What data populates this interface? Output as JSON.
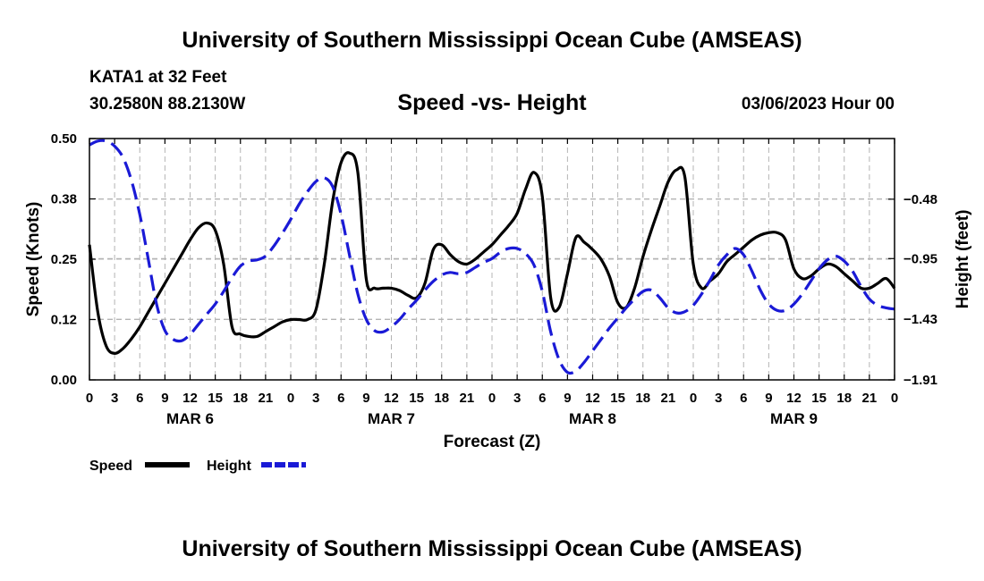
{
  "header": {
    "title": "University of Southern Mississippi Ocean Cube (AMSEAS)",
    "station": "KATA1 at 32 Feet",
    "coords": "30.2580N  88.2130W",
    "subtitle": "Speed -vs- Height",
    "datetime": "03/06/2023 Hour 00"
  },
  "footer": {
    "title": "University of Southern Mississippi Ocean Cube (AMSEAS)"
  },
  "chart_data": {
    "type": "line",
    "xlabel": "Forecast (Z)",
    "ylabel": "Speed (Knots)",
    "y2label": "Height (feet)",
    "x_range": [
      0,
      96
    ],
    "ylim": [
      0.0,
      0.5
    ],
    "y2lim": [
      -1.91,
      0.0
    ],
    "grid": true,
    "legend_position": "bottom-left",
    "x_ticks": [
      0,
      3,
      6,
      9,
      12,
      15,
      18,
      21,
      24,
      27,
      30,
      33,
      36,
      39,
      42,
      45,
      48,
      51,
      54,
      57,
      60,
      63,
      66,
      69,
      72,
      75,
      78,
      81,
      84,
      87,
      90,
      93,
      96
    ],
    "x_tick_labels": [
      "0",
      "3",
      "6",
      "9",
      "12",
      "15",
      "18",
      "21",
      "0",
      "3",
      "6",
      "9",
      "12",
      "15",
      "18",
      "21",
      "0",
      "3",
      "6",
      "9",
      "12",
      "15",
      "18",
      "21",
      "0",
      "3",
      "6",
      "9",
      "12",
      "15",
      "18",
      "21",
      "0"
    ],
    "day_labels": [
      {
        "x": 12,
        "label": "MAR 6"
      },
      {
        "x": 36,
        "label": "MAR 7"
      },
      {
        "x": 60,
        "label": "MAR 8"
      },
      {
        "x": 84,
        "label": "MAR 9"
      }
    ],
    "y_ticks": [
      0.0,
      0.125,
      0.25,
      0.375,
      0.5
    ],
    "y_tick_labels": [
      "0.00",
      "0.12",
      "0.25",
      "0.38",
      "0.50"
    ],
    "y2_ticks": [
      -1.91,
      -1.43,
      -0.95,
      -0.48
    ],
    "y2_tick_labels": [
      "-1.91",
      "-1.43",
      "-0.95",
      "-0.48"
    ],
    "series": [
      {
        "name": "Speed",
        "axis": "left",
        "color": "#000000",
        "dash": "solid",
        "x": [
          0,
          1,
          2,
          3,
          4,
          5,
          6,
          7,
          8,
          9,
          10,
          11,
          12,
          13,
          14,
          15,
          16,
          17,
          18,
          19,
          20,
          21,
          22,
          23,
          24,
          25,
          26,
          27,
          28,
          29,
          30,
          31,
          32,
          33,
          34,
          35,
          36,
          37,
          38,
          39,
          40,
          41,
          42,
          43,
          44,
          45,
          46,
          47,
          48,
          49,
          50,
          51,
          52,
          53,
          54,
          55,
          56,
          57,
          58,
          59,
          60,
          61,
          62,
          63,
          64,
          65,
          66,
          67,
          68,
          69,
          70,
          71,
          72,
          73,
          74,
          75,
          76,
          77,
          78,
          79,
          80,
          81,
          82,
          83,
          84,
          85,
          86,
          87,
          88,
          89,
          90,
          91,
          92,
          93,
          94,
          95,
          96
        ],
        "values": [
          0.28,
          0.14,
          0.07,
          0.055,
          0.065,
          0.085,
          0.11,
          0.14,
          0.17,
          0.2,
          0.23,
          0.26,
          0.29,
          0.315,
          0.325,
          0.31,
          0.24,
          0.11,
          0.095,
          0.09,
          0.09,
          0.1,
          0.11,
          0.12,
          0.125,
          0.125,
          0.125,
          0.145,
          0.24,
          0.37,
          0.45,
          0.47,
          0.43,
          0.21,
          0.19,
          0.19,
          0.19,
          0.185,
          0.175,
          0.17,
          0.2,
          0.27,
          0.28,
          0.26,
          0.245,
          0.24,
          0.25,
          0.265,
          0.28,
          0.3,
          0.32,
          0.345,
          0.395,
          0.43,
          0.38,
          0.17,
          0.15,
          0.22,
          0.295,
          0.285,
          0.27,
          0.25,
          0.215,
          0.16,
          0.15,
          0.19,
          0.255,
          0.31,
          0.36,
          0.41,
          0.435,
          0.42,
          0.24,
          0.19,
          0.205,
          0.22,
          0.245,
          0.26,
          0.275,
          0.29,
          0.3,
          0.305,
          0.305,
          0.29,
          0.23,
          0.21,
          0.215,
          0.23,
          0.24,
          0.235,
          0.22,
          0.205,
          0.19,
          0.19,
          0.2,
          0.21,
          0.19
        ]
      },
      {
        "name": "Height",
        "axis": "right",
        "color": "#1a1ad6",
        "dash": "dashed",
        "x": [
          0,
          1,
          2,
          3,
          4,
          5,
          6,
          7,
          8,
          9,
          10,
          11,
          12,
          13,
          14,
          15,
          16,
          17,
          18,
          19,
          20,
          21,
          22,
          23,
          24,
          25,
          26,
          27,
          28,
          29,
          30,
          31,
          32,
          33,
          34,
          35,
          36,
          37,
          38,
          39,
          40,
          41,
          42,
          43,
          44,
          45,
          46,
          47,
          48,
          49,
          50,
          51,
          52,
          53,
          54,
          55,
          56,
          57,
          58,
          59,
          60,
          61,
          62,
          63,
          64,
          65,
          66,
          67,
          68,
          69,
          70,
          71,
          72,
          73,
          74,
          75,
          76,
          77,
          78,
          79,
          80,
          81,
          82,
          83,
          84,
          85,
          86,
          87,
          88,
          89,
          90,
          91,
          92,
          93,
          94,
          95,
          96
        ],
        "values": [
          -0.05,
          -0.02,
          -0.02,
          -0.06,
          -0.15,
          -0.33,
          -0.6,
          -0.95,
          -1.31,
          -1.52,
          -1.59,
          -1.6,
          -1.55,
          -1.47,
          -1.39,
          -1.31,
          -1.21,
          -1.1,
          -1.01,
          -0.97,
          -0.96,
          -0.93,
          -0.85,
          -0.75,
          -0.64,
          -0.52,
          -0.42,
          -0.34,
          -0.31,
          -0.38,
          -0.6,
          -0.92,
          -1.23,
          -1.43,
          -1.52,
          -1.53,
          -1.49,
          -1.43,
          -1.35,
          -1.28,
          -1.2,
          -1.13,
          -1.08,
          -1.06,
          -1.07,
          -1.06,
          -1.02,
          -0.98,
          -0.95,
          -0.9,
          -0.87,
          -0.87,
          -0.91,
          -1.0,
          -1.21,
          -1.53,
          -1.75,
          -1.85,
          -1.84,
          -1.77,
          -1.68,
          -1.59,
          -1.5,
          -1.42,
          -1.34,
          -1.27,
          -1.21,
          -1.2,
          -1.26,
          -1.34,
          -1.38,
          -1.37,
          -1.32,
          -1.23,
          -1.12,
          -1.0,
          -0.92,
          -0.87,
          -0.92,
          -1.05,
          -1.2,
          -1.31,
          -1.36,
          -1.36,
          -1.31,
          -1.23,
          -1.13,
          -1.03,
          -0.96,
          -0.93,
          -0.97,
          -1.05,
          -1.17,
          -1.27,
          -1.32,
          -1.34,
          -1.35
        ]
      }
    ]
  }
}
